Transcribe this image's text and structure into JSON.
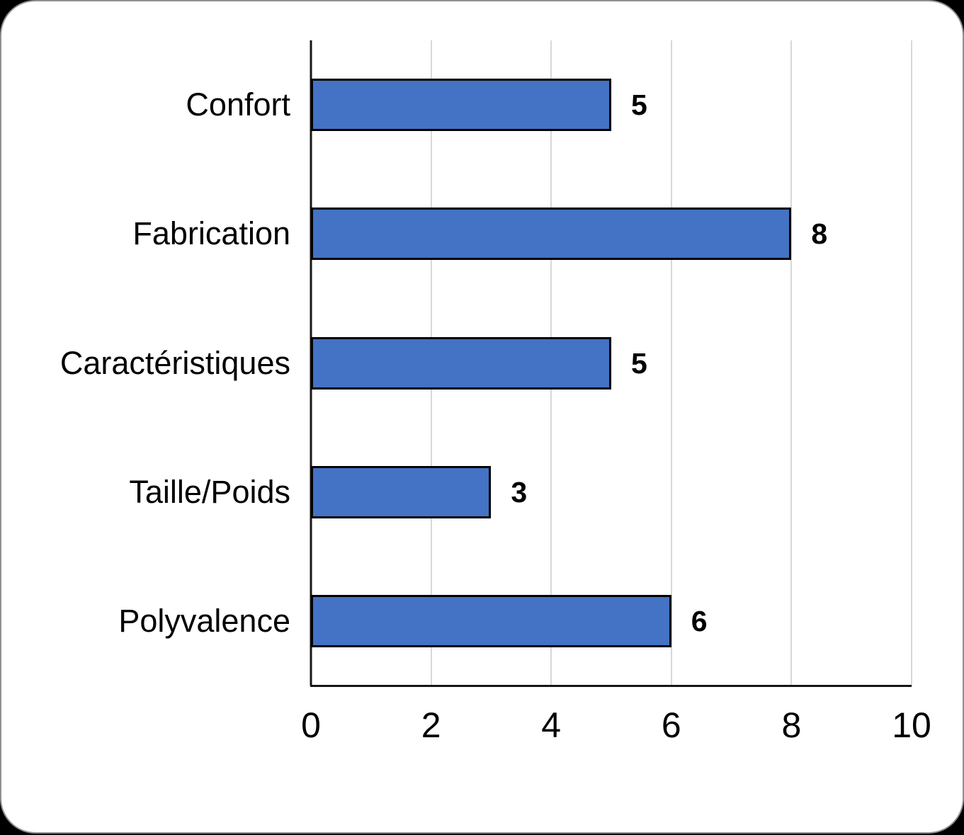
{
  "chart_data": {
    "type": "bar",
    "orientation": "horizontal",
    "title": "",
    "xlabel": "",
    "ylabel": "",
    "categories": [
      "Confort",
      "Fabrication",
      "Caractéristiques",
      "Taille/Poids",
      "Polyvalence"
    ],
    "values": [
      5,
      8,
      5,
      3,
      6
    ],
    "data_labels": [
      "5",
      "8",
      "5",
      "3",
      "6"
    ],
    "xlim": [
      0,
      10
    ],
    "xticks": [
      0,
      2,
      4,
      6,
      8,
      10
    ],
    "grid": true,
    "legend": false,
    "colors": {
      "bar_fill": "#4472C4",
      "bar_border": "#000000",
      "gridline": "#D8D8D8",
      "axis": "#161616",
      "text": "#000000",
      "card_background": "#FFFFFF",
      "outer_background": "#000000"
    }
  }
}
